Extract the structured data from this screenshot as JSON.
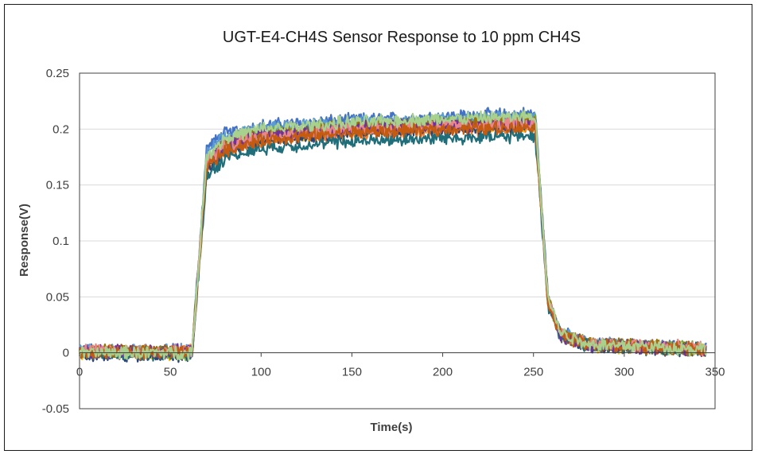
{
  "chart_data": {
    "type": "line",
    "title": "UGT-E4-CH4S Sensor Response to 10 ppm CH4S",
    "xlabel": "Time(s)",
    "ylabel": "Response(V)",
    "xlim": [
      0,
      350
    ],
    "ylim": [
      -0.05,
      0.25
    ],
    "xticks": [
      0,
      50,
      100,
      150,
      200,
      250,
      300,
      350
    ],
    "yticks": [
      -0.05,
      0,
      0.05,
      0.1,
      0.15,
      0.2,
      0.25
    ],
    "xtick_labels": [
      "0",
      "50",
      "100",
      "150",
      "200",
      "250",
      "300",
      "350"
    ],
    "ytick_labels": [
      "-0.05",
      "0",
      "0.05",
      "0.1",
      "0.15",
      "0.2",
      "0.25"
    ],
    "grid": "horizontal",
    "legend": "none",
    "gas_on_time": 62,
    "gas_off_time": 252,
    "end_time": 345,
    "series": [
      {
        "color": "#4472C4",
        "plateau": 0.212,
        "profile": [
          [
            0,
            0.002
          ],
          [
            62,
            0.002
          ],
          [
            70,
            0.183
          ],
          [
            80,
            0.196
          ],
          [
            100,
            0.203
          ],
          [
            150,
            0.208
          ],
          [
            200,
            0.211
          ],
          [
            251,
            0.214
          ],
          [
            258,
            0.05
          ],
          [
            265,
            0.018
          ],
          [
            280,
            0.008
          ],
          [
            345,
            0.004
          ]
        ]
      },
      {
        "color": "#ED7D31",
        "plateau": 0.2,
        "profile": [
          [
            0,
            0.001
          ],
          [
            62,
            0.001
          ],
          [
            70,
            0.166
          ],
          [
            80,
            0.18
          ],
          [
            100,
            0.189
          ],
          [
            150,
            0.196
          ],
          [
            200,
            0.199
          ],
          [
            251,
            0.201
          ],
          [
            258,
            0.045
          ],
          [
            265,
            0.016
          ],
          [
            280,
            0.007
          ],
          [
            345,
            0.003
          ]
        ]
      },
      {
        "color": "#A5A5A5",
        "plateau": 0.206,
        "profile": [
          [
            0,
            0.001
          ],
          [
            62,
            0.001
          ],
          [
            70,
            0.172
          ],
          [
            80,
            0.188
          ],
          [
            100,
            0.196
          ],
          [
            150,
            0.202
          ],
          [
            200,
            0.205
          ],
          [
            251,
            0.207
          ],
          [
            258,
            0.048
          ],
          [
            265,
            0.017
          ],
          [
            280,
            0.008
          ],
          [
            345,
            0.003
          ]
        ]
      },
      {
        "color": "#FFC000",
        "plateau": 0.203,
        "profile": [
          [
            0,
            0.0
          ],
          [
            62,
            0.0
          ],
          [
            70,
            0.168
          ],
          [
            80,
            0.184
          ],
          [
            100,
            0.192
          ],
          [
            150,
            0.199
          ],
          [
            200,
            0.202
          ],
          [
            251,
            0.204
          ],
          [
            258,
            0.046
          ],
          [
            265,
            0.016
          ],
          [
            280,
            0.007
          ],
          [
            345,
            0.003
          ]
        ]
      },
      {
        "color": "#5B9BD5",
        "plateau": 0.21,
        "profile": [
          [
            0,
            0.002
          ],
          [
            62,
            0.002
          ],
          [
            70,
            0.178
          ],
          [
            80,
            0.193
          ],
          [
            100,
            0.201
          ],
          [
            150,
            0.206
          ],
          [
            200,
            0.209
          ],
          [
            251,
            0.211
          ],
          [
            258,
            0.049
          ],
          [
            265,
            0.018
          ],
          [
            280,
            0.008
          ],
          [
            345,
            0.004
          ]
        ]
      },
      {
        "color": "#70AD47",
        "plateau": 0.207,
        "profile": [
          [
            0,
            0.0
          ],
          [
            62,
            0.0
          ],
          [
            70,
            0.172
          ],
          [
            80,
            0.187
          ],
          [
            100,
            0.196
          ],
          [
            150,
            0.202
          ],
          [
            200,
            0.205
          ],
          [
            251,
            0.208
          ],
          [
            258,
            0.047
          ],
          [
            265,
            0.017
          ],
          [
            280,
            0.008
          ],
          [
            345,
            0.003
          ]
        ]
      },
      {
        "color": "#264478",
        "plateau": 0.201,
        "profile": [
          [
            0,
            -0.002
          ],
          [
            62,
            -0.002
          ],
          [
            70,
            0.163
          ],
          [
            80,
            0.18
          ],
          [
            100,
            0.19
          ],
          [
            150,
            0.197
          ],
          [
            200,
            0.2
          ],
          [
            251,
            0.202
          ],
          [
            258,
            0.045
          ],
          [
            265,
            0.015
          ],
          [
            280,
            0.006
          ],
          [
            345,
            0.002
          ]
        ]
      },
      {
        "color": "#9E480E",
        "plateau": 0.204,
        "profile": [
          [
            0,
            0.001
          ],
          [
            62,
            0.001
          ],
          [
            70,
            0.17
          ],
          [
            80,
            0.185
          ],
          [
            100,
            0.194
          ],
          [
            150,
            0.2
          ],
          [
            200,
            0.203
          ],
          [
            251,
            0.205
          ],
          [
            258,
            0.046
          ],
          [
            265,
            0.016
          ],
          [
            280,
            0.007
          ],
          [
            345,
            0.003
          ]
        ]
      },
      {
        "color": "#636363",
        "plateau": 0.205,
        "profile": [
          [
            0,
            0.0
          ],
          [
            62,
            0.0
          ],
          [
            70,
            0.17
          ],
          [
            80,
            0.186
          ],
          [
            100,
            0.195
          ],
          [
            150,
            0.201
          ],
          [
            200,
            0.204
          ],
          [
            251,
            0.206
          ],
          [
            258,
            0.047
          ],
          [
            265,
            0.016
          ],
          [
            280,
            0.007
          ],
          [
            345,
            0.003
          ]
        ]
      },
      {
        "color": "#997300",
        "plateau": 0.206,
        "profile": [
          [
            0,
            0.001
          ],
          [
            62,
            0.001
          ],
          [
            70,
            0.171
          ],
          [
            80,
            0.187
          ],
          [
            100,
            0.196
          ],
          [
            150,
            0.202
          ],
          [
            200,
            0.205
          ],
          [
            251,
            0.207
          ],
          [
            258,
            0.047
          ],
          [
            265,
            0.017
          ],
          [
            280,
            0.008
          ],
          [
            345,
            0.003
          ]
        ]
      },
      {
        "color": "#1F6E7A",
        "plateau": 0.193,
        "profile": [
          [
            0,
            -0.001
          ],
          [
            62,
            -0.001
          ],
          [
            70,
            0.158
          ],
          [
            80,
            0.174
          ],
          [
            100,
            0.183
          ],
          [
            150,
            0.189
          ],
          [
            200,
            0.192
          ],
          [
            251,
            0.194
          ],
          [
            258,
            0.043
          ],
          [
            265,
            0.015
          ],
          [
            280,
            0.006
          ],
          [
            345,
            0.002
          ]
        ]
      },
      {
        "color": "#7030A0",
        "plateau": 0.205,
        "profile": [
          [
            0,
            0.001
          ],
          [
            62,
            0.001
          ],
          [
            70,
            0.169
          ],
          [
            80,
            0.186
          ],
          [
            100,
            0.195
          ],
          [
            150,
            0.201
          ],
          [
            200,
            0.204
          ],
          [
            251,
            0.206
          ],
          [
            258,
            0.047
          ],
          [
            265,
            0.016
          ],
          [
            280,
            0.007
          ],
          [
            345,
            0.003
          ]
        ]
      },
      {
        "color": "#E8868A",
        "plateau": 0.204,
        "profile": [
          [
            0,
            0.002
          ],
          [
            62,
            0.002
          ],
          [
            70,
            0.17
          ],
          [
            80,
            0.185
          ],
          [
            100,
            0.194
          ],
          [
            150,
            0.2
          ],
          [
            200,
            0.203
          ],
          [
            251,
            0.205
          ],
          [
            258,
            0.047
          ],
          [
            265,
            0.017
          ],
          [
            280,
            0.008
          ],
          [
            345,
            0.004
          ]
        ]
      },
      {
        "color": "#C55A11",
        "plateau": 0.201,
        "profile": [
          [
            0,
            0.0
          ],
          [
            62,
            0.0
          ],
          [
            70,
            0.166
          ],
          [
            80,
            0.181
          ],
          [
            100,
            0.19
          ],
          [
            150,
            0.197
          ],
          [
            200,
            0.2
          ],
          [
            251,
            0.202
          ],
          [
            258,
            0.045
          ],
          [
            265,
            0.016
          ],
          [
            280,
            0.007
          ],
          [
            345,
            0.003
          ]
        ]
      },
      {
        "color": "#A9D18E",
        "plateau": 0.21,
        "profile": [
          [
            0,
            0.0
          ],
          [
            62,
            0.0
          ],
          [
            70,
            0.176
          ],
          [
            80,
            0.192
          ],
          [
            100,
            0.2
          ],
          [
            150,
            0.206
          ],
          [
            200,
            0.209
          ],
          [
            251,
            0.211
          ],
          [
            258,
            0.049
          ],
          [
            265,
            0.018
          ],
          [
            280,
            0.008
          ],
          [
            345,
            0.003
          ]
        ]
      }
    ]
  }
}
